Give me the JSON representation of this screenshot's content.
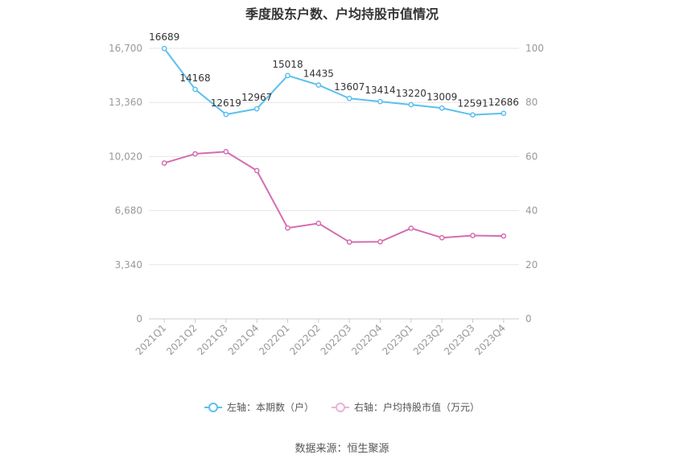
{
  "title": "季度股东户数、户均持股市值情况",
  "source_text": "数据来源：恒生聚源",
  "colors": {
    "left_series": "#5bc0ee",
    "right_series": "#d36eb1",
    "grid": "#e6e6e6",
    "axis_text": "#999999",
    "label_text": "#333333"
  },
  "legend": {
    "left_label": "左轴：本期数（户）",
    "right_label": "右轴：户均持股市值（万元）"
  },
  "chart_data": {
    "type": "line",
    "categories": [
      "2021Q1",
      "2021Q2",
      "2021Q3",
      "2021Q4",
      "2022Q1",
      "2022Q2",
      "2022Q3",
      "2022Q4",
      "2023Q1",
      "2023Q2",
      "2023Q3",
      "2023Q4"
    ],
    "left_axis": {
      "ylim": [
        0,
        16700
      ],
      "ticks": [
        "0",
        "3,340",
        "6,680",
        "10,020",
        "13,360",
        "16,700"
      ]
    },
    "right_axis": {
      "ylim": [
        0,
        100
      ],
      "ticks": [
        "0",
        "20",
        "40",
        "60",
        "80",
        "100"
      ]
    },
    "series": [
      {
        "name": "本期数（户）",
        "axis": "left",
        "values": [
          16689,
          14168,
          12619,
          12967,
          15018,
          14435,
          13607,
          13414,
          13220,
          13009,
          12591,
          12686
        ],
        "labels": [
          "16689",
          "14168",
          "12619",
          "12967",
          "15018",
          "14435",
          "13607",
          "13414",
          "13220",
          "13009",
          "12591",
          "12686"
        ]
      },
      {
        "name": "户均持股市值（万元）",
        "axis": "right",
        "values": [
          57.6,
          61.0,
          61.8,
          54.8,
          33.6,
          35.3,
          28.4,
          28.5,
          33.5,
          30.0,
          30.8,
          30.6
        ]
      }
    ],
    "grid": true,
    "legend_position": "bottom"
  }
}
